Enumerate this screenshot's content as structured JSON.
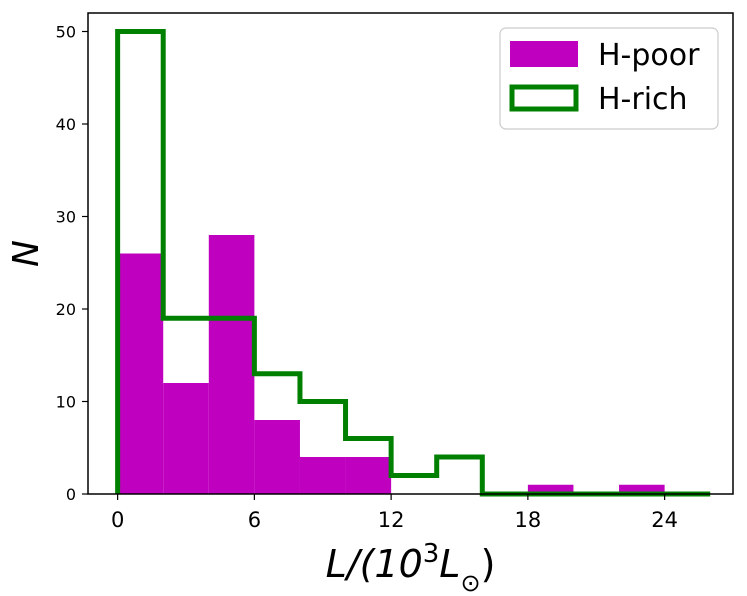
{
  "chart_data": {
    "type": "histogram",
    "xlabel": {
      "prefix": "L/(10",
      "superscript": "3",
      "middle": "L",
      "subscript": "⊙",
      "suffix": ")"
    },
    "ylabel": "N",
    "xlim": [
      -1.3,
      27
    ],
    "ylim": [
      0,
      52
    ],
    "xticks": [
      0,
      6,
      12,
      18,
      24
    ],
    "yticks": [
      0,
      10,
      20,
      30,
      40,
      50
    ],
    "bin_edges": [
      0,
      2,
      4,
      6,
      8,
      10,
      12,
      14,
      16,
      18,
      20,
      22,
      24,
      26
    ],
    "series": [
      {
        "name": "H-poor",
        "style": "filled",
        "color": "#bf00bf",
        "counts": [
          26,
          12,
          28,
          8,
          4,
          4,
          0,
          0,
          0,
          1,
          0,
          1,
          0
        ]
      },
      {
        "name": "H-rich",
        "style": "step",
        "color": "#008000",
        "counts": [
          50,
          19,
          19,
          13,
          10,
          6,
          2,
          4,
          0,
          0,
          0,
          0,
          0
        ]
      }
    ],
    "legend": {
      "location": "top-right",
      "entries": [
        "H-poor",
        "H-rich"
      ]
    },
    "grid": false
  }
}
